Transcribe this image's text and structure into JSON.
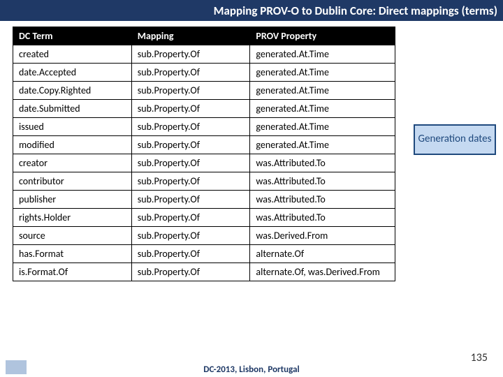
{
  "title": "Mapping PROV-O to Dublin Core: Direct mappings (terms)",
  "columns": [
    "DC Term",
    "Mapping",
    "PROV Property"
  ],
  "rows": [
    [
      "created",
      "sub.Property.Of",
      "generated.At.Time"
    ],
    [
      "date.Accepted",
      "sub.Property.Of",
      "generated.At.Time"
    ],
    [
      "date.Copy.Righted",
      "sub.Property.Of",
      "generated.At.Time"
    ],
    [
      "date.Submitted",
      "sub.Property.Of",
      "generated.At.Time"
    ],
    [
      "issued",
      "sub.Property.Of",
      "generated.At.Time"
    ],
    [
      "modified",
      "sub.Property.Of",
      "generated.At.Time"
    ],
    [
      "creator",
      "sub.Property.Of",
      "was.Attributed.To"
    ],
    [
      "contributor",
      "sub.Property.Of",
      "was.Attributed.To"
    ],
    [
      "publisher",
      "sub.Property.Of",
      "was.Attributed.To"
    ],
    [
      "rights.Holder",
      "sub.Property.Of",
      "was.Attributed.To"
    ],
    [
      "source",
      "sub.Property.Of",
      "was.Derived.From"
    ],
    [
      "has.Format",
      "sub.Property.Of",
      "alternate.Of"
    ],
    [
      "is.Format.Of",
      "sub.Property.Of",
      "alternate.Of, was.Derived.From"
    ]
  ],
  "badge": "Generation dates",
  "footer": "DC-2013, Lisbon, Portugal",
  "page": "135"
}
